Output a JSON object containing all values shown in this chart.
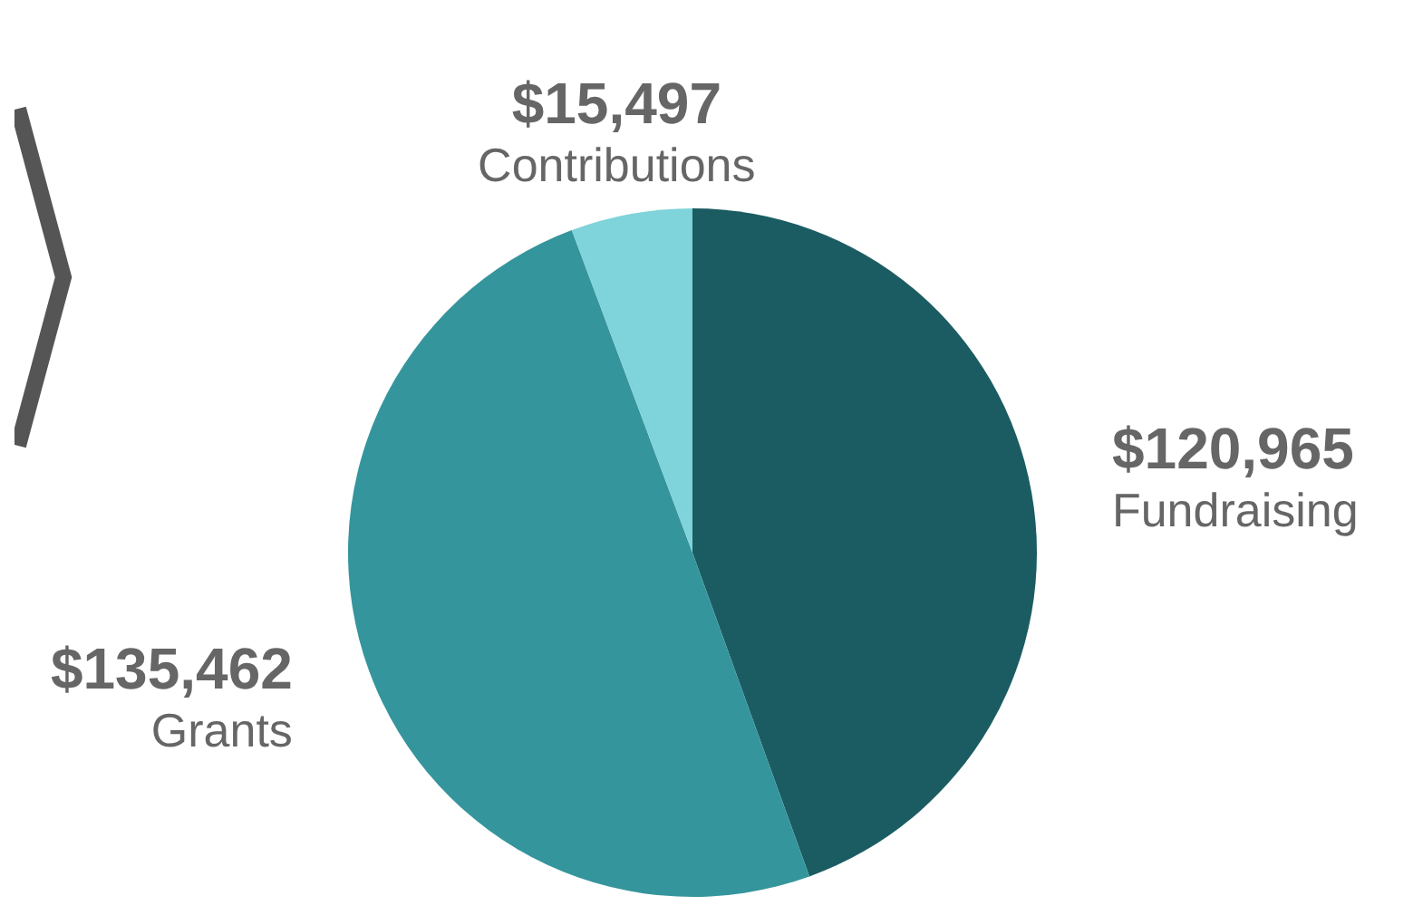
{
  "chart_data": {
    "type": "pie",
    "categories": [
      "Fundraising",
      "Grants",
      "Contributions"
    ],
    "values": [
      120965,
      135462,
      15497
    ],
    "value_labels": [
      "$120,965",
      "$135,462",
      "$15,497"
    ],
    "colors": [
      "#1b5c62",
      "#35959c",
      "#7fd3da"
    ]
  }
}
